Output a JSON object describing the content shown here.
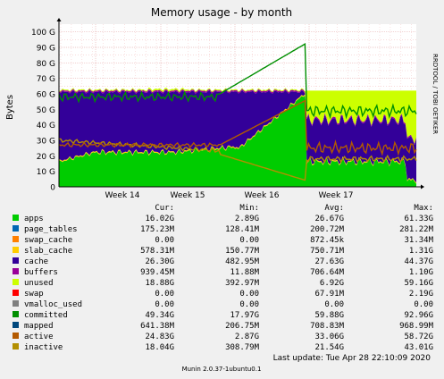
{
  "chart_data": {
    "type": "area",
    "title": "Memory usage - by month",
    "ylabel": "Bytes",
    "watermark": "RRDTOOL / TOBI OETIKER",
    "x_ticks": [
      "Week 14",
      "Week 15",
      "Week 16",
      "Week 17"
    ],
    "y_ticks": [
      "0",
      "10 G",
      "20 G",
      "30 G",
      "40 G",
      "50 G",
      "60 G",
      "70 G",
      "80 G",
      "90 G",
      "100 G"
    ],
    "ylim_gb": [
      0,
      105
    ],
    "grid": true,
    "legend_headers": [
      "Cur:",
      "Min:",
      "Avg:",
      "Max:"
    ],
    "series": [
      {
        "name": "apps",
        "color": "#00cc00",
        "cur": "16.02G",
        "min": "2.89G",
        "avg": "26.67G",
        "max": "61.33G"
      },
      {
        "name": "page_tables",
        "color": "#0066b3",
        "cur": "175.23M",
        "min": "128.41M",
        "avg": "200.72M",
        "max": "281.22M"
      },
      {
        "name": "swap_cache",
        "color": "#ff8000",
        "cur": "0.00",
        "min": "0.00",
        "avg": "872.45k",
        "max": "31.34M"
      },
      {
        "name": "slab_cache",
        "color": "#ffcc00",
        "cur": "578.31M",
        "min": "150.77M",
        "avg": "750.71M",
        "max": "1.31G"
      },
      {
        "name": "cache",
        "color": "#330099",
        "cur": "26.30G",
        "min": "482.95M",
        "avg": "27.63G",
        "max": "44.37G"
      },
      {
        "name": "buffers",
        "color": "#990099",
        "cur": "939.45M",
        "min": "11.88M",
        "avg": "706.64M",
        "max": "1.10G"
      },
      {
        "name": "unused",
        "color": "#ccff00",
        "cur": "18.88G",
        "min": "392.97M",
        "avg": "6.92G",
        "max": "59.16G"
      },
      {
        "name": "swap",
        "color": "#ff0000",
        "cur": "0.00",
        "min": "0.00",
        "avg": "67.91M",
        "max": "2.19G"
      },
      {
        "name": "vmalloc_used",
        "color": "#808080",
        "cur": "0.00",
        "min": "0.00",
        "avg": "0.00",
        "max": "0.00"
      },
      {
        "name": "committed",
        "color": "#008f00",
        "cur": "49.34G",
        "min": "17.97G",
        "avg": "59.88G",
        "max": "92.96G"
      },
      {
        "name": "mapped",
        "color": "#00487d",
        "cur": "641.38M",
        "min": "206.75M",
        "avg": "708.83M",
        "max": "968.99M"
      },
      {
        "name": "active",
        "color": "#b35a00",
        "cur": "24.83G",
        "min": "2.87G",
        "avg": "33.06G",
        "max": "58.72G"
      },
      {
        "name": "inactive",
        "color": "#b38f00",
        "cur": "18.04G",
        "min": "308.79M",
        "avg": "21.54G",
        "max": "43.01G"
      }
    ]
  },
  "footer": {
    "last_update": "Last update: Tue Apr 28 22:10:09 2020",
    "version": "Munin 2.0.37-1ubuntu0.1"
  }
}
